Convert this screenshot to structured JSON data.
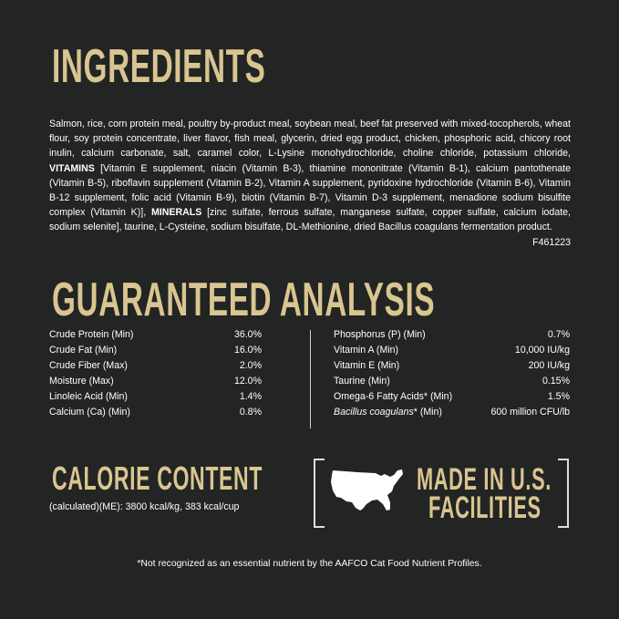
{
  "colors": {
    "background": "#232424",
    "heading": "#d9c590",
    "text": "#ffffff"
  },
  "ingredients": {
    "title": "INGREDIENTS",
    "text1": "Salmon, rice, corn protein meal, poultry by-product meal, soybean meal, beef fat preserved with mixed-tocopherols, wheat flour, soy protein concentrate, liver flavor, fish meal, glycerin, dried egg product, chicken, phosphoric acid, chicory root inulin, calcium carbonate, salt, caramel color, L-Lysine monohydrochloride, choline chloride, potassium chloride, ",
    "vitamins_label": "VITAMINS",
    "text2": " [Vitamin E supplement, niacin (Vitamin B-3), thiamine mononitrate (Vitamin B-1), calcium pantothenate (Vitamin B-5), riboflavin supplement (Vitamin B-2), Vitamin A supplement, pyridoxine hydrochloride (Vitamin B-6), Vitamin B-12 supplement, folic acid (Vitamin B-9), biotin (Vitamin B-7), Vitamin D-3 supplement, menadione sodium bisulfite complex (Vitamin K)], ",
    "minerals_label": "MINERALS",
    "text3": " [zinc sulfate, ferrous sulfate, manganese sulfate, copper sulfate, calcium iodate, sodium selenite], taurine, L-Cysteine, sodium bisulfate, DL-Methionine, dried Bacillus coagulans fermentation product.",
    "code": "F461223"
  },
  "analysis": {
    "title": "GUARANTEED ANALYSIS",
    "left": [
      {
        "label": "Crude Protein (Min)",
        "value": "36.0%"
      },
      {
        "label": "Crude Fat (Min)",
        "value": "16.0%"
      },
      {
        "label": "Crude Fiber (Max)",
        "value": "2.0%"
      },
      {
        "label": "Moisture (Max)",
        "value": "12.0%"
      },
      {
        "label": "Linoleic Acid (Min)",
        "value": "1.4%"
      },
      {
        "label": "Calcium (Ca) (Min)",
        "value": "0.8%"
      }
    ],
    "right": [
      {
        "label": "Phosphorus (P) (Min)",
        "value": "0.7%"
      },
      {
        "label": "Vitamin A (Min)",
        "value": "10,000 IU/kg"
      },
      {
        "label": "Vitamin E (Min)",
        "value": "200 IU/kg"
      },
      {
        "label": "Taurine (Min)",
        "value": "0.15%"
      },
      {
        "label": "Omega-6 Fatty Acids* (Min)",
        "value": "1.5%"
      }
    ],
    "bacillus": {
      "italic": "Bacillus coagulans",
      "rest": "* (Min)",
      "value": "600 million CFU/lb"
    }
  },
  "calorie": {
    "title": "CALORIE CONTENT",
    "text": "(calculated)(ME): 3800 kcal/kg, 383 kcal/cup"
  },
  "made_in": {
    "line1": "MADE IN U.S.",
    "line2": "FACILITIES",
    "icon": "usa-map-icon"
  },
  "footnote": "*Not recognized as an essential nutrient by the AAFCO Cat Food Nutrient Profiles."
}
